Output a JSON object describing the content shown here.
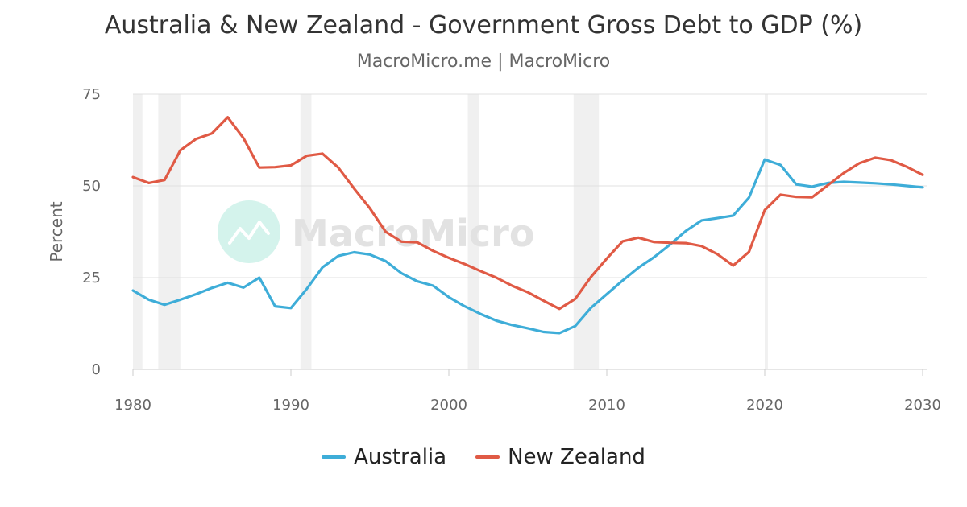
{
  "header": {
    "title": "Australia & New Zealand - Government Gross Debt to GDP (%)",
    "subtitle": "MacroMicro.me | MacroMicro"
  },
  "watermark": {
    "text": "MacroMicro",
    "icon": "chart-line-icon",
    "icon_color": "#d4f3ec"
  },
  "colors": {
    "australia": "#3eadd8",
    "new_zealand": "#e05a45",
    "recession_band": "#f0f0f0",
    "grid": "#e0e0e0"
  },
  "chart_data": {
    "type": "line",
    "title": "Australia & New Zealand - Government Gross Debt to GDP (%)",
    "subtitle": "MacroMicro.me | MacroMicro",
    "xlabel": "",
    "ylabel": "Percent",
    "xlim": [
      1980,
      2030
    ],
    "ylim": [
      0,
      75
    ],
    "x_ticks": [
      1980,
      1990,
      2000,
      2010,
      2020,
      2030
    ],
    "y_ticks": [
      0,
      25,
      50,
      75
    ],
    "grid": true,
    "legend_position": "bottom-center",
    "shaded_periods": [
      [
        1980,
        1980.6
      ],
      [
        1981.6,
        1983.0
      ],
      [
        1990.6,
        1991.3
      ],
      [
        2001.2,
        2001.9
      ],
      [
        2007.9,
        2009.5
      ],
      [
        2020.0,
        2020.2
      ]
    ],
    "x": [
      1980,
      1981,
      1982,
      1983,
      1984,
      1985,
      1986,
      1987,
      1988,
      1989,
      1990,
      1991,
      1992,
      1993,
      1994,
      1995,
      1996,
      1997,
      1998,
      1999,
      2000,
      2001,
      2002,
      2003,
      2004,
      2005,
      2006,
      2007,
      2008,
      2009,
      2010,
      2011,
      2012,
      2013,
      2014,
      2015,
      2016,
      2017,
      2018,
      2019,
      2020,
      2021,
      2022,
      2023,
      2024,
      2025,
      2026,
      2027,
      2028,
      2029,
      2030
    ],
    "series": [
      {
        "name": "Australia",
        "values": [
          21.5,
          19.0,
          17.6,
          19.0,
          20.5,
          22.2,
          23.6,
          22.3,
          25.0,
          17.2,
          16.7,
          21.9,
          27.8,
          30.9,
          31.9,
          31.3,
          29.5,
          26.2,
          24.0,
          22.8,
          19.7,
          17.2,
          15.1,
          13.3,
          12.1,
          11.2,
          10.2,
          9.9,
          11.8,
          16.8,
          20.5,
          24.2,
          27.7,
          30.6,
          34.0,
          37.7,
          40.6,
          41.2,
          41.9,
          46.8,
          57.2,
          55.7,
          50.4,
          49.8,
          50.8,
          51.1,
          50.9,
          50.7,
          50.4,
          50.0,
          49.6
        ]
      },
      {
        "name": "New Zealand",
        "values": [
          52.4,
          50.8,
          51.6,
          59.7,
          62.8,
          64.3,
          68.7,
          63.0,
          55.0,
          55.1,
          55.6,
          58.2,
          58.8,
          55.0,
          49.3,
          43.9,
          37.5,
          34.8,
          34.6,
          32.3,
          30.4,
          28.7,
          26.8,
          25.0,
          22.8,
          21.0,
          18.7,
          16.5,
          19.2,
          25.2,
          30.2,
          34.9,
          35.9,
          34.7,
          34.5,
          34.4,
          33.6,
          31.4,
          28.3,
          32.0,
          43.4,
          47.6,
          47.0,
          46.9,
          50.2,
          53.5,
          56.2,
          57.7,
          57.0,
          55.2,
          53.0
        ]
      }
    ]
  }
}
